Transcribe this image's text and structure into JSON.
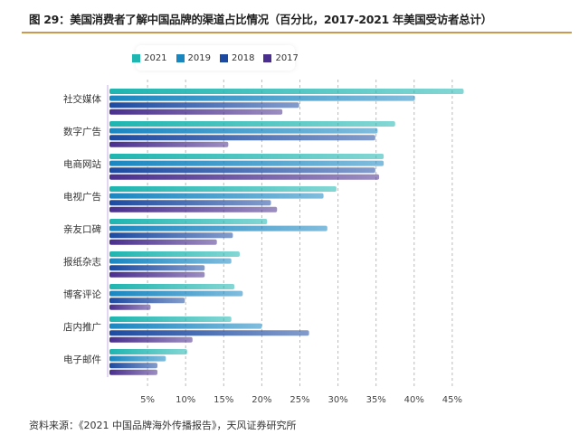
{
  "chart_data": {
    "type": "bar",
    "orientation": "horizontal",
    "title": "图 29：美国消费者了解中国品牌的渠道占比情况（百分比，2017-2021 年美国受访者总计）",
    "categories": [
      "社交媒体",
      "数字广告",
      "电商网站",
      "电视广告",
      "亲友口碑",
      "报纸杂志",
      "博客评论",
      "店内推广",
      "电子邮件"
    ],
    "series": [
      {
        "name": "2021",
        "color": "#1fb5b0",
        "values": [
          46.5,
          37.5,
          36.0,
          29.8,
          20.7,
          17.1,
          16.4,
          16.0,
          10.2
        ]
      },
      {
        "name": "2019",
        "color": "#1a86c0",
        "values": [
          40.1,
          35.2,
          36.0,
          28.1,
          28.6,
          16.0,
          17.5,
          20.0,
          7.4
        ]
      },
      {
        "name": "2018",
        "color": "#1d4aa0",
        "values": [
          24.9,
          34.9,
          34.9,
          21.2,
          16.2,
          12.5,
          9.9,
          26.2,
          6.3
        ]
      },
      {
        "name": "2017",
        "color": "#4a2f8f",
        "values": [
          22.7,
          15.6,
          35.4,
          22.0,
          14.1,
          12.5,
          5.4,
          10.9,
          6.3
        ]
      }
    ],
    "x_ticks": [
      "5%",
      "10%",
      "15%",
      "20%",
      "25%",
      "30%",
      "35%",
      "40%",
      "45%"
    ],
    "xlim": [
      0,
      47
    ],
    "grid": "vertical dashed",
    "legend_position": "top-center",
    "source": "资料来源：《2021 中国品牌海外传播报告》，天风证券研究所"
  }
}
